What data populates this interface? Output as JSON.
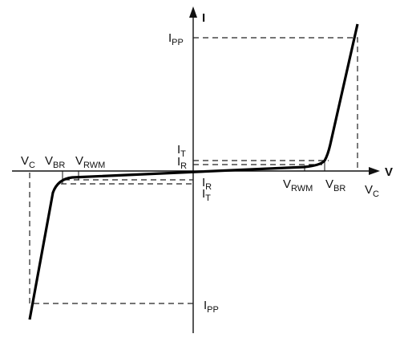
{
  "axes": {
    "y_label": "I",
    "x_label": "V"
  },
  "labels": {
    "ipp_top": {
      "base": "I",
      "sub": "PP"
    },
    "it_pos": {
      "base": "I",
      "sub": "T"
    },
    "ir_pos": {
      "base": "I",
      "sub": "R"
    },
    "ir_neg": {
      "base": "I",
      "sub": "R"
    },
    "it_neg": {
      "base": "I",
      "sub": "T"
    },
    "vrwm_pos": {
      "base": "V",
      "sub": "RWM"
    },
    "vbr_pos": {
      "base": "V",
      "sub": "BR"
    },
    "vc_pos": {
      "base": "V",
      "sub": "C"
    },
    "vc_neg": {
      "base": "V",
      "sub": "C"
    },
    "vbr_neg": {
      "base": "V",
      "sub": "BR"
    },
    "vrwm_neg": {
      "base": "V",
      "sub": "RWM"
    },
    "ipp_bottom": {
      "base": "I",
      "sub": "PP"
    }
  }
}
